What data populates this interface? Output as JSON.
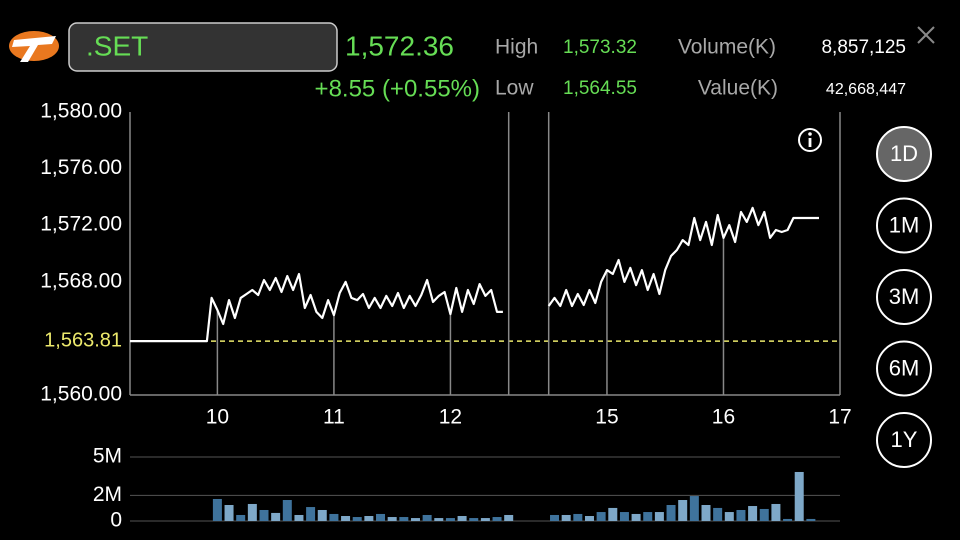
{
  "header": {
    "symbol": ".SET",
    "last": "1,572.36",
    "change": "+8.55 (+0.55%)",
    "stats": [
      {
        "label": "High",
        "value": "1,573.32"
      },
      {
        "label": "Low",
        "value": "1,564.55"
      },
      {
        "label": "Volume(K)",
        "value": "8,857,125"
      },
      {
        "label": "Value(K)",
        "value": "42,668,447"
      }
    ]
  },
  "periods": [
    "1D",
    "1M",
    "3M",
    "6M",
    "1Y"
  ],
  "selected_period": 0,
  "chart_data": [
    {
      "type": "line",
      "color": "#ffffff",
      "x": [
        9.25,
        9.91,
        9.95,
        10.0,
        10.05,
        10.1,
        10.15,
        10.2,
        10.25,
        10.3,
        10.35,
        10.4,
        10.45,
        10.5,
        10.55,
        10.6,
        10.65,
        10.7,
        10.75,
        10.8,
        10.85,
        10.9,
        10.95,
        11.0,
        11.05,
        11.1,
        11.15,
        11.2,
        11.25,
        11.3,
        11.35,
        11.4,
        11.45,
        11.5,
        11.55,
        11.6,
        11.65,
        11.7,
        11.75,
        11.8,
        11.85,
        11.9,
        11.95,
        12.0,
        12.05,
        12.1,
        12.15,
        12.2,
        12.25,
        12.3,
        12.35,
        12.4,
        12.45,
        13.5,
        14.5,
        14.55,
        14.6,
        14.65,
        14.7,
        14.75,
        14.8,
        14.85,
        14.9,
        14.95,
        15.0,
        15.05,
        15.1,
        15.15,
        15.2,
        15.25,
        15.3,
        15.35,
        15.4,
        15.45,
        15.5,
        15.55,
        15.6,
        15.65,
        15.7,
        15.75,
        15.8,
        15.85,
        15.9,
        15.95,
        16.0,
        16.05,
        16.1,
        16.15,
        16.2,
        16.25,
        16.3,
        16.35,
        16.4,
        16.45,
        16.5,
        16.55,
        16.6,
        16.82
      ],
      "values": [
        1563.81,
        1563.81,
        1566.86,
        1566.01,
        1565.02,
        1566.71,
        1565.44,
        1566.86,
        1567.14,
        1567.42,
        1567.07,
        1568.13,
        1567.42,
        1568.27,
        1567.28,
        1568.41,
        1567.42,
        1568.55,
        1566.15,
        1567.07,
        1565.87,
        1565.44,
        1566.71,
        1565.65,
        1567.21,
        1567.99,
        1566.86,
        1566.71,
        1567.14,
        1566.15,
        1566.86,
        1566.15,
        1567.0,
        1566.29,
        1567.21,
        1566.15,
        1567.0,
        1566.29,
        1567.07,
        1568.13,
        1566.57,
        1567.0,
        1567.28,
        1565.72,
        1567.56,
        1565.87,
        1567.42,
        1566.43,
        1567.84,
        1567.0,
        1567.42,
        1565.87,
        1565.87,
        null,
        1566.29,
        1566.86,
        1566.29,
        1567.42,
        1566.29,
        1567.14,
        1566.36,
        1567.42,
        1566.5,
        1567.99,
        1568.83,
        1568.55,
        1569.54,
        1567.99,
        1568.98,
        1567.77,
        1568.83,
        1567.42,
        1568.55,
        1567.14,
        1568.83,
        1569.82,
        1570.25,
        1570.95,
        1570.6,
        1572.51,
        1570.95,
        1572.23,
        1570.6,
        1572.72,
        1571.1,
        1572.01,
        1570.81,
        1572.93,
        1572.23,
        1573.22,
        1572.01,
        1572.93,
        1571.1,
        1571.66,
        1571.52,
        1571.66,
        1572.51,
        1572.51
      ],
      "xlim": [
        9.25,
        17
      ],
      "xticks": [
        10,
        11,
        12,
        15,
        16,
        17
      ],
      "x_breaks": [
        [
          12.5,
          14.5
        ]
      ],
      "ylim": [
        1560,
        1580
      ],
      "yticks": [
        {
          "value": 1560,
          "label": "1,560.00"
        },
        {
          "value": 1568,
          "label": "1,568.00"
        },
        {
          "value": 1572,
          "label": "1,572.00"
        },
        {
          "value": 1576,
          "label": "1,576.00"
        },
        {
          "value": 1580,
          "label": "1,580.00"
        }
      ],
      "reference_line": {
        "value": 1563.81,
        "label": "1,563.81",
        "color": "#ece96c"
      }
    },
    {
      "type": "bar",
      "colors": [
        "#3f739c",
        "#7ea8c8"
      ],
      "x": [
        10.0,
        10.1,
        10.2,
        10.3,
        10.4,
        10.5,
        10.6,
        10.7,
        10.8,
        10.9,
        11.0,
        11.1,
        11.2,
        11.3,
        11.4,
        11.5,
        11.6,
        11.7,
        11.8,
        11.9,
        12.0,
        12.1,
        12.2,
        12.3,
        12.4,
        12.5,
        14.55,
        14.65,
        14.75,
        14.85,
        14.95,
        15.05,
        15.15,
        15.25,
        15.35,
        15.45,
        15.55,
        15.65,
        15.75,
        15.85,
        15.95,
        16.05,
        16.15,
        16.25,
        16.35,
        16.45,
        16.55,
        16.65,
        16.75
      ],
      "values": [
        1720000,
        1250000,
        470000,
        1330000,
        860000,
        630000,
        1640000,
        470000,
        1090000,
        860000,
        550000,
        390000,
        310000,
        390000,
        550000,
        310000,
        310000,
        230000,
        470000,
        230000,
        230000,
        390000,
        230000,
        230000,
        310000,
        470000,
        470000,
        470000,
        550000,
        390000,
        700000,
        1020000,
        700000,
        550000,
        700000,
        700000,
        1250000,
        1640000,
        1950000,
        1250000,
        1020000,
        700000,
        860000,
        1170000,
        940000,
        1330000,
        160000,
        3830000,
        160000
      ],
      "xlim": [
        9.25,
        17
      ],
      "x_breaks": [
        [
          12.5,
          14.5
        ]
      ],
      "ylim": [
        0,
        5000000
      ],
      "yticks": [
        0,
        {
          "value": 2000000,
          "label": "2M"
        },
        {
          "value": 5000000,
          "label": "5M"
        }
      ]
    }
  ]
}
